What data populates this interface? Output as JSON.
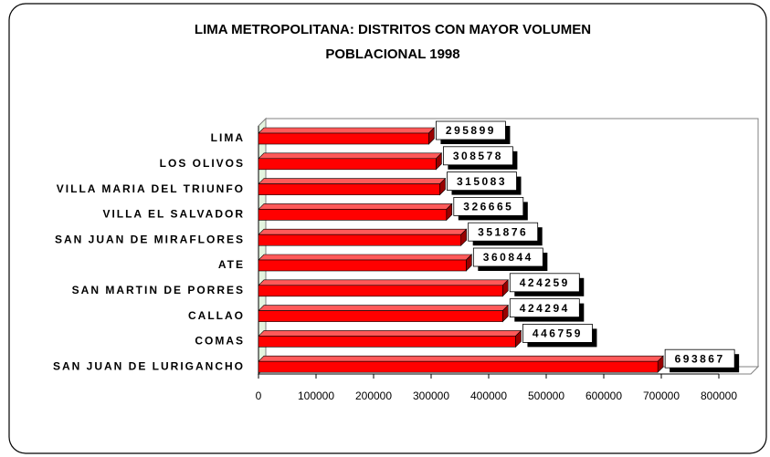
{
  "chart_data": {
    "type": "bar",
    "orientation": "horizontal",
    "title": "LIMA METROPOLITANA: DISTRITOS CON MAYOR VOLUMEN POBLACIONAL 1998",
    "categories": [
      "LIMA",
      "LOS OLIVOS",
      "VILLA MARIA DEL TRIUNFO",
      "VILLA EL SALVADOR",
      "SAN JUAN DE MIRAFLORES",
      "ATE",
      "SAN MARTIN DE PORRES",
      "CALLAO",
      "COMAS",
      "SAN JUAN DE LURIGANCHO"
    ],
    "values": [
      295899,
      308578,
      315083,
      326665,
      351876,
      360844,
      424259,
      424294,
      446759,
      693867
    ],
    "color": "#ff0000",
    "xlim": [
      0,
      800000
    ],
    "xticks": [
      0,
      100000,
      200000,
      300000,
      400000,
      500000,
      600000,
      700000,
      800000
    ]
  }
}
